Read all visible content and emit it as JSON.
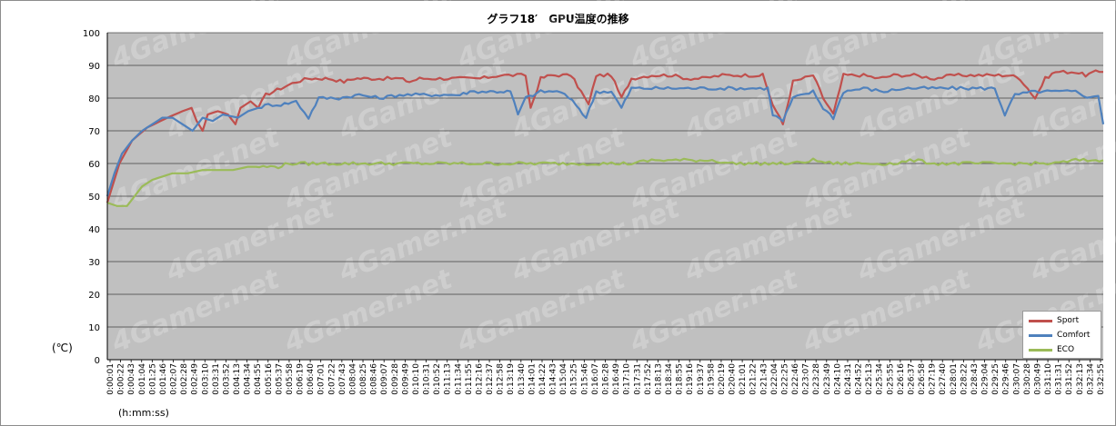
{
  "chart_data": {
    "type": "line",
    "title": "グラフ18′　GPU温度の推移",
    "ylabel": "(℃)",
    "xlabel": "(h:mm:ss)",
    "ylim": [
      0,
      100
    ],
    "yticks": [
      0,
      10,
      20,
      30,
      40,
      50,
      60,
      70,
      80,
      90,
      100
    ],
    "grid": true,
    "legend_position": "bottom-right",
    "watermark": "4Gamer.net",
    "x_tick_labels": [
      "0:00:01",
      "0:00:22",
      "0:00:43",
      "0:01:04",
      "0:01:25",
      "0:01:46",
      "0:02:07",
      "0:02:28",
      "0:02:49",
      "0:03:10",
      "0:03:31",
      "0:03:52",
      "0:04:13",
      "0:04:34",
      "0:04:55",
      "0:05:16",
      "0:05:37",
      "0:05:58",
      "0:06:19",
      "0:06:40",
      "0:07:01",
      "0:07:22",
      "0:07:43",
      "0:08:04",
      "0:08:25",
      "0:08:46",
      "0:09:07",
      "0:09:28",
      "0:09:49",
      "0:10:10",
      "0:10:31",
      "0:10:52",
      "0:11:13",
      "0:11:34",
      "0:11:55",
      "0:12:16",
      "0:12:37",
      "0:12:58",
      "0:13:19",
      "0:13:40",
      "0:14:01",
      "0:14:22",
      "0:14:43",
      "0:15:04",
      "0:15:25",
      "0:15:46",
      "0:16:07",
      "0:16:28",
      "0:16:49",
      "0:17:10",
      "0:17:31",
      "0:17:52",
      "0:18:13",
      "0:18:34",
      "0:18:55",
      "0:19:16",
      "0:19:37",
      "0:19:58",
      "0:20:19",
      "0:20:40",
      "0:21:01",
      "0:21:22",
      "0:21:43",
      "0:22:04",
      "0:22:25",
      "0:22:46",
      "0:23:07",
      "0:23:28",
      "0:23:49",
      "0:24:10",
      "0:24:31",
      "0:24:52",
      "0:25:13",
      "0:25:34",
      "0:25:55",
      "0:26:16",
      "0:26:37",
      "0:26:58",
      "0:27:19",
      "0:27:40",
      "0:28:01",
      "0:28:22",
      "0:28:43",
      "0:29:04",
      "0:29:25",
      "0:29:46",
      "0:30:07",
      "0:30:28",
      "0:30:49",
      "0:31:10",
      "0:31:31",
      "0:31:52",
      "0:32:13",
      "0:32:34",
      "0:32:55"
    ],
    "x_seconds_start": 1,
    "x_seconds_end": 1975,
    "series": [
      {
        "name": "Sport",
        "color": "#c0504d",
        "points": [
          [
            1,
            48
          ],
          [
            25,
            60
          ],
          [
            50,
            67
          ],
          [
            80,
            71
          ],
          [
            120,
            74
          ],
          [
            150,
            76
          ],
          [
            168,
            77
          ],
          [
            178,
            73
          ],
          [
            190,
            70
          ],
          [
            200,
            75
          ],
          [
            220,
            76
          ],
          [
            240,
            75
          ],
          [
            255,
            72
          ],
          [
            265,
            77
          ],
          [
            285,
            79
          ],
          [
            300,
            77
          ],
          [
            315,
            81
          ],
          [
            345,
            83
          ],
          [
            375,
            85
          ],
          [
            400,
            86
          ],
          [
            420,
            86
          ],
          [
            440,
            86
          ],
          [
            470,
            85
          ],
          [
            490,
            86
          ],
          [
            510,
            86
          ],
          [
            540,
            86
          ],
          [
            580,
            86
          ],
          [
            600,
            85
          ],
          [
            620,
            86
          ],
          [
            660,
            86
          ],
          [
            700,
            86
          ],
          [
            740,
            86
          ],
          [
            780,
            87
          ],
          [
            830,
            87
          ],
          [
            840,
            77
          ],
          [
            860,
            86
          ],
          [
            880,
            87
          ],
          [
            920,
            87
          ],
          [
            940,
            82
          ],
          [
            955,
            78
          ],
          [
            970,
            87
          ],
          [
            1000,
            87
          ],
          [
            1020,
            80
          ],
          [
            1040,
            86
          ],
          [
            1080,
            87
          ],
          [
            1120,
            87
          ],
          [
            1150,
            86
          ],
          [
            1180,
            86
          ],
          [
            1220,
            87
          ],
          [
            1250,
            87
          ],
          [
            1280,
            87
          ],
          [
            1300,
            87
          ],
          [
            1320,
            78
          ],
          [
            1340,
            72
          ],
          [
            1360,
            85
          ],
          [
            1400,
            87
          ],
          [
            1420,
            80
          ],
          [
            1440,
            75
          ],
          [
            1460,
            87
          ],
          [
            1500,
            87
          ],
          [
            1530,
            86
          ],
          [
            1560,
            87
          ],
          [
            1600,
            87
          ],
          [
            1640,
            86
          ],
          [
            1680,
            87
          ],
          [
            1720,
            87
          ],
          [
            1760,
            87
          ],
          [
            1790,
            87
          ],
          [
            1810,
            86
          ],
          [
            1840,
            80
          ],
          [
            1860,
            86
          ],
          [
            1880,
            88
          ],
          [
            1920,
            88
          ],
          [
            1940,
            87
          ],
          [
            1960,
            88
          ],
          [
            1975,
            88
          ]
        ]
      },
      {
        "name": "Comfort",
        "color": "#4f81bd",
        "points": [
          [
            1,
            50
          ],
          [
            15,
            57
          ],
          [
            30,
            63
          ],
          [
            50,
            67
          ],
          [
            70,
            70
          ],
          [
            90,
            72
          ],
          [
            110,
            74
          ],
          [
            130,
            74
          ],
          [
            150,
            72
          ],
          [
            170,
            70
          ],
          [
            190,
            74
          ],
          [
            210,
            73
          ],
          [
            230,
            75
          ],
          [
            260,
            74
          ],
          [
            280,
            76
          ],
          [
            300,
            77
          ],
          [
            320,
            78
          ],
          [
            345,
            78
          ],
          [
            375,
            79
          ],
          [
            400,
            74
          ],
          [
            420,
            80
          ],
          [
            460,
            80
          ],
          [
            500,
            81
          ],
          [
            540,
            80
          ],
          [
            580,
            81
          ],
          [
            620,
            81
          ],
          [
            660,
            81
          ],
          [
            700,
            81
          ],
          [
            720,
            82
          ],
          [
            760,
            82
          ],
          [
            780,
            82
          ],
          [
            800,
            82
          ],
          [
            815,
            75
          ],
          [
            830,
            80
          ],
          [
            860,
            82
          ],
          [
            900,
            82
          ],
          [
            930,
            78
          ],
          [
            950,
            74
          ],
          [
            970,
            82
          ],
          [
            1000,
            82
          ],
          [
            1020,
            77
          ],
          [
            1040,
            83
          ],
          [
            1080,
            83
          ],
          [
            1120,
            83
          ],
          [
            1160,
            83
          ],
          [
            1200,
            83
          ],
          [
            1240,
            83
          ],
          [
            1280,
            83
          ],
          [
            1310,
            83
          ],
          [
            1320,
            75
          ],
          [
            1340,
            73
          ],
          [
            1360,
            80
          ],
          [
            1400,
            82
          ],
          [
            1420,
            77
          ],
          [
            1440,
            74
          ],
          [
            1460,
            82
          ],
          [
            1500,
            83
          ],
          [
            1540,
            82
          ],
          [
            1580,
            83
          ],
          [
            1620,
            83
          ],
          [
            1660,
            83
          ],
          [
            1700,
            83
          ],
          [
            1740,
            83
          ],
          [
            1760,
            83
          ],
          [
            1780,
            75
          ],
          [
            1800,
            81
          ],
          [
            1840,
            82
          ],
          [
            1880,
            82
          ],
          [
            1920,
            82
          ],
          [
            1950,
            80
          ],
          [
            1965,
            81
          ],
          [
            1975,
            72
          ]
        ]
      },
      {
        "name": "ECO",
        "color": "#9bbb59",
        "points": [
          [
            1,
            48
          ],
          [
            20,
            47
          ],
          [
            40,
            47
          ],
          [
            55,
            50
          ],
          [
            70,
            53
          ],
          [
            90,
            55
          ],
          [
            110,
            56
          ],
          [
            130,
            57
          ],
          [
            160,
            57
          ],
          [
            190,
            58
          ],
          [
            220,
            58
          ],
          [
            250,
            58
          ],
          [
            280,
            59
          ],
          [
            310,
            59
          ],
          [
            340,
            59
          ],
          [
            360,
            60
          ],
          [
            400,
            60
          ],
          [
            440,
            60
          ],
          [
            480,
            60
          ],
          [
            520,
            60
          ],
          [
            560,
            60
          ],
          [
            600,
            60
          ],
          [
            640,
            60
          ],
          [
            680,
            60
          ],
          [
            720,
            60
          ],
          [
            760,
            60
          ],
          [
            800,
            60
          ],
          [
            840,
            60
          ],
          [
            880,
            60
          ],
          [
            920,
            60
          ],
          [
            960,
            60
          ],
          [
            1000,
            60
          ],
          [
            1040,
            60
          ],
          [
            1080,
            61
          ],
          [
            1120,
            61
          ],
          [
            1160,
            61
          ],
          [
            1200,
            61
          ],
          [
            1240,
            60
          ],
          [
            1280,
            60
          ],
          [
            1320,
            60
          ],
          [
            1360,
            60
          ],
          [
            1400,
            61
          ],
          [
            1440,
            60
          ],
          [
            1480,
            60
          ],
          [
            1520,
            60
          ],
          [
            1560,
            60
          ],
          [
            1600,
            61
          ],
          [
            1640,
            60
          ],
          [
            1680,
            60
          ],
          [
            1720,
            60
          ],
          [
            1760,
            60
          ],
          [
            1800,
            60
          ],
          [
            1840,
            60
          ],
          [
            1880,
            60
          ],
          [
            1920,
            61
          ],
          [
            1960,
            61
          ],
          [
            1975,
            61
          ]
        ]
      }
    ]
  }
}
